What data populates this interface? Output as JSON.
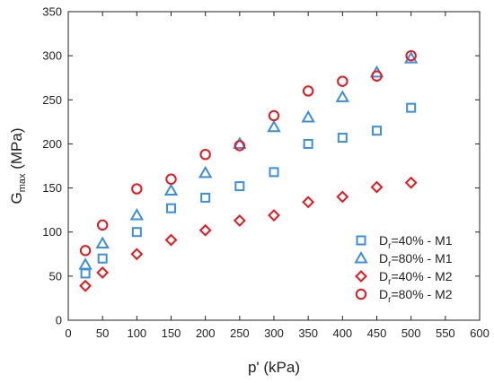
{
  "chart_data": {
    "type": "scatter",
    "title": "",
    "xlabel": "p' (kPa)",
    "ylabel_main": "G",
    "ylabel_sub": "max",
    "ylabel_unit": " (MPa)",
    "xlim": [
      0,
      600
    ],
    "ylim": [
      0,
      350
    ],
    "xticks": [
      0,
      50,
      100,
      150,
      200,
      250,
      300,
      350,
      400,
      450,
      500,
      550,
      600
    ],
    "yticks": [
      0,
      50,
      100,
      150,
      200,
      250,
      300,
      350
    ],
    "grid": false,
    "legend_position": "bottom-right",
    "series": [
      {
        "label_main": "D",
        "label_sub": "r",
        "label_rest": "=40% - M1",
        "marker": "square",
        "color": "#3b8fdc",
        "x": [
          25,
          50,
          100,
          150,
          200,
          250,
          300,
          350,
          400,
          450,
          500
        ],
        "y": [
          53,
          70,
          100,
          127,
          139,
          152,
          168,
          200,
          207,
          215,
          241
        ]
      },
      {
        "label_main": "D",
        "label_sub": "r",
        "label_rest": "=80% - M1",
        "marker": "triangle",
        "color": "#3b8fdc",
        "x": [
          25,
          50,
          100,
          150,
          200,
          250,
          300,
          350,
          400,
          450,
          500
        ],
        "y": [
          63,
          87,
          119,
          147,
          167,
          200,
          219,
          230,
          253,
          281,
          297
        ]
      },
      {
        "label_main": "D",
        "label_sub": "r",
        "label_rest": "=40% - M2",
        "marker": "diamond",
        "color": "#e8171f",
        "x": [
          25,
          50,
          100,
          150,
          200,
          250,
          300,
          350,
          400,
          450,
          500
        ],
        "y": [
          39,
          54,
          75,
          91,
          102,
          113,
          119,
          134,
          140,
          151,
          156
        ]
      },
      {
        "label_main": "D",
        "label_sub": "r",
        "label_rest": "=80% - M2",
        "marker": "circle",
        "color": "#e8171f",
        "x": [
          25,
          50,
          100,
          150,
          200,
          250,
          300,
          350,
          400,
          450,
          500
        ],
        "y": [
          79,
          108,
          149,
          160,
          188,
          198,
          232,
          260,
          271,
          277,
          300
        ]
      }
    ]
  }
}
